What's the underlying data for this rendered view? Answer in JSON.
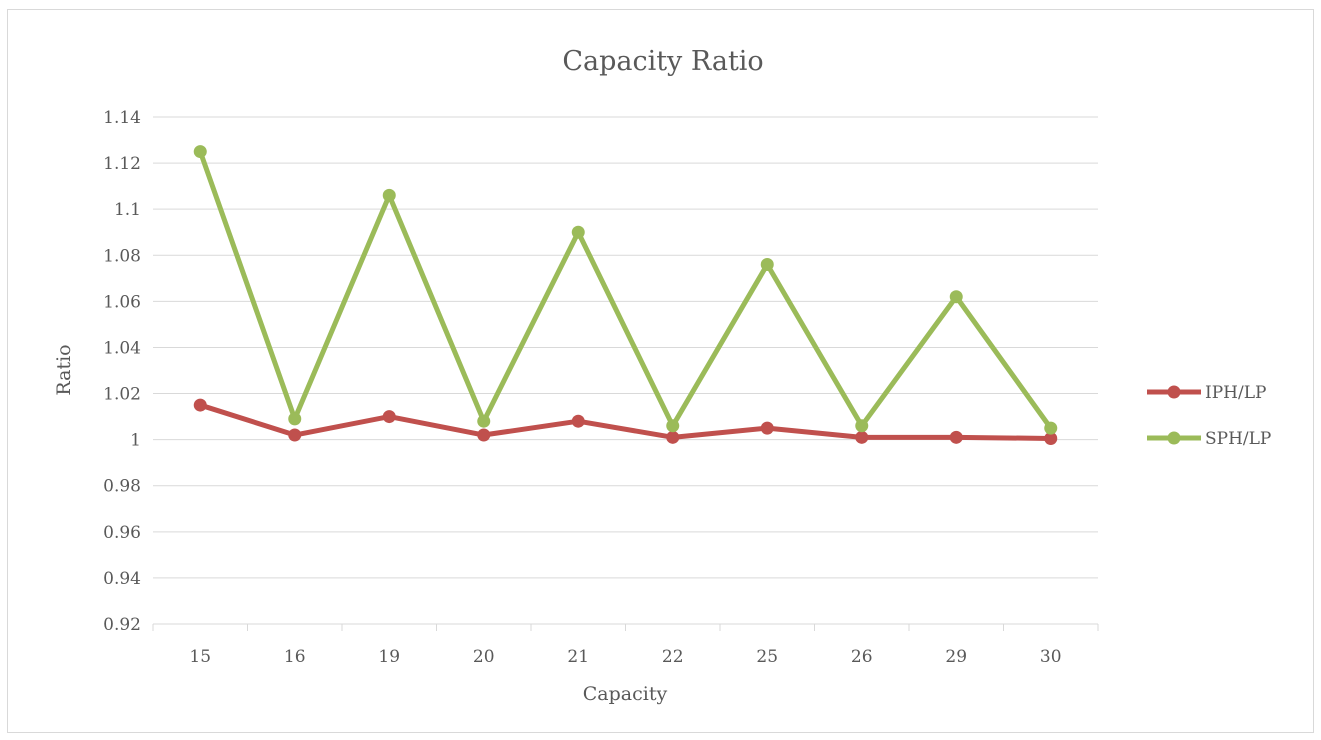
{
  "chart_data": {
    "type": "line",
    "title": "Capacity Ratio",
    "xlabel": "Capacity",
    "ylabel": "Ratio",
    "categories": [
      "15",
      "16",
      "19",
      "20",
      "21",
      "22",
      "25",
      "26",
      "29",
      "30"
    ],
    "y_ticks": [
      "0.92",
      "0.94",
      "0.96",
      "0.98",
      "1",
      "1.02",
      "1.04",
      "1.06",
      "1.08",
      "1.1",
      "1.12",
      "1.14"
    ],
    "ylim": [
      0.92,
      1.14
    ],
    "grid": true,
    "legend_position": "right",
    "series": [
      {
        "name": "IPH/LP",
        "color": "#c0504d",
        "values": [
          1.015,
          1.002,
          1.01,
          1.002,
          1.008,
          1.001,
          1.005,
          1.001,
          1.001,
          1.0005
        ]
      },
      {
        "name": "SPH/LP",
        "color": "#9bbb59",
        "values": [
          1.125,
          1.009,
          1.106,
          1.008,
          1.09,
          1.006,
          1.076,
          1.006,
          1.062,
          1.005
        ]
      }
    ]
  }
}
